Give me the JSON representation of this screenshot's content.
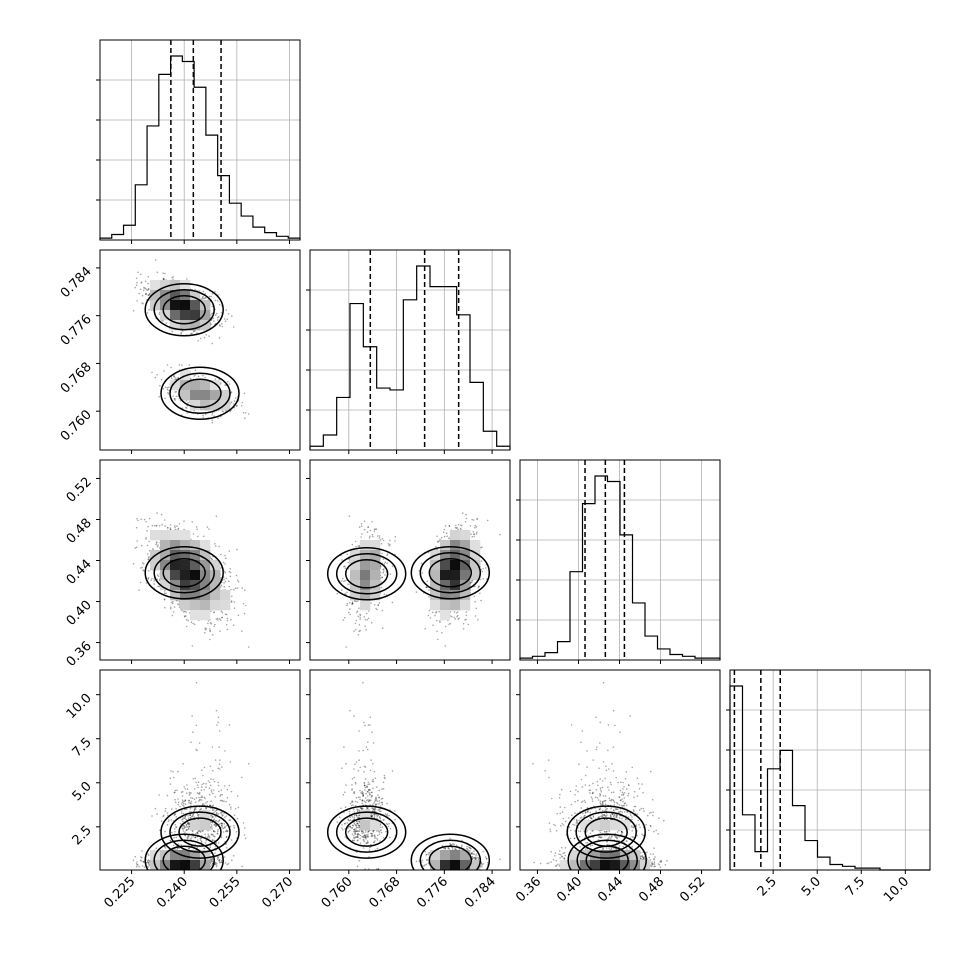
{
  "chart_data": {
    "type": "corner",
    "parameters": [
      {
        "range": [
          0.216,
          0.273
        ],
        "ticks": [
          "0.225",
          "0.240",
          "0.255",
          "0.270"
        ],
        "quantiles": [
          0.2362,
          0.2426,
          0.2505
        ]
      },
      {
        "range": [
          0.7535,
          0.787
        ],
        "ticks": [
          "0.760",
          "0.768",
          "0.776",
          "0.784"
        ],
        "quantiles": [
          0.7636,
          0.7727,
          0.7784
        ]
      },
      {
        "range": [
          0.343,
          0.538
        ],
        "ticks": [
          "0.36",
          "0.40",
          "0.44",
          "0.48",
          "0.52"
        ],
        "quantiles": [
          0.4064,
          0.4262,
          0.4448
        ]
      },
      {
        "range": [
          0.05,
          11.4
        ],
        "ticks": [
          "2.5",
          "5.0",
          "7.5",
          "10.0"
        ],
        "quantiles": [
          0.3,
          1.8,
          2.9
        ]
      }
    ],
    "histograms": [
      [
        1,
        3,
        8,
        30,
        62,
        90,
        100,
        97,
        83,
        57,
        35,
        20,
        13,
        7,
        4,
        2,
        1
      ],
      [
        2,
        8,
        28,
        78,
        55,
        33,
        32,
        80,
        98,
        87,
        87,
        72,
        36,
        10,
        2
      ],
      [
        1,
        2,
        4,
        10,
        48,
        85,
        100,
        97,
        68,
        31,
        13,
        6,
        3,
        2,
        1,
        1
      ],
      [
        100,
        30,
        10,
        55,
        65,
        35,
        16,
        7,
        3,
        2,
        1,
        1,
        0,
        0,
        0,
        0
      ]
    ],
    "modes": [
      {
        "weight": 0.5,
        "mean": [
          0.24,
          0.777,
          0.428,
          0.6
        ]
      },
      {
        "weight": 0.3,
        "mean": [
          0.2445,
          0.763,
          0.427,
          2.2
        ]
      },
      {
        "weight": 0.2,
        "mean": [
          0.238,
          0.779,
          0.43,
          0.6
        ]
      }
    ],
    "grid": true
  }
}
